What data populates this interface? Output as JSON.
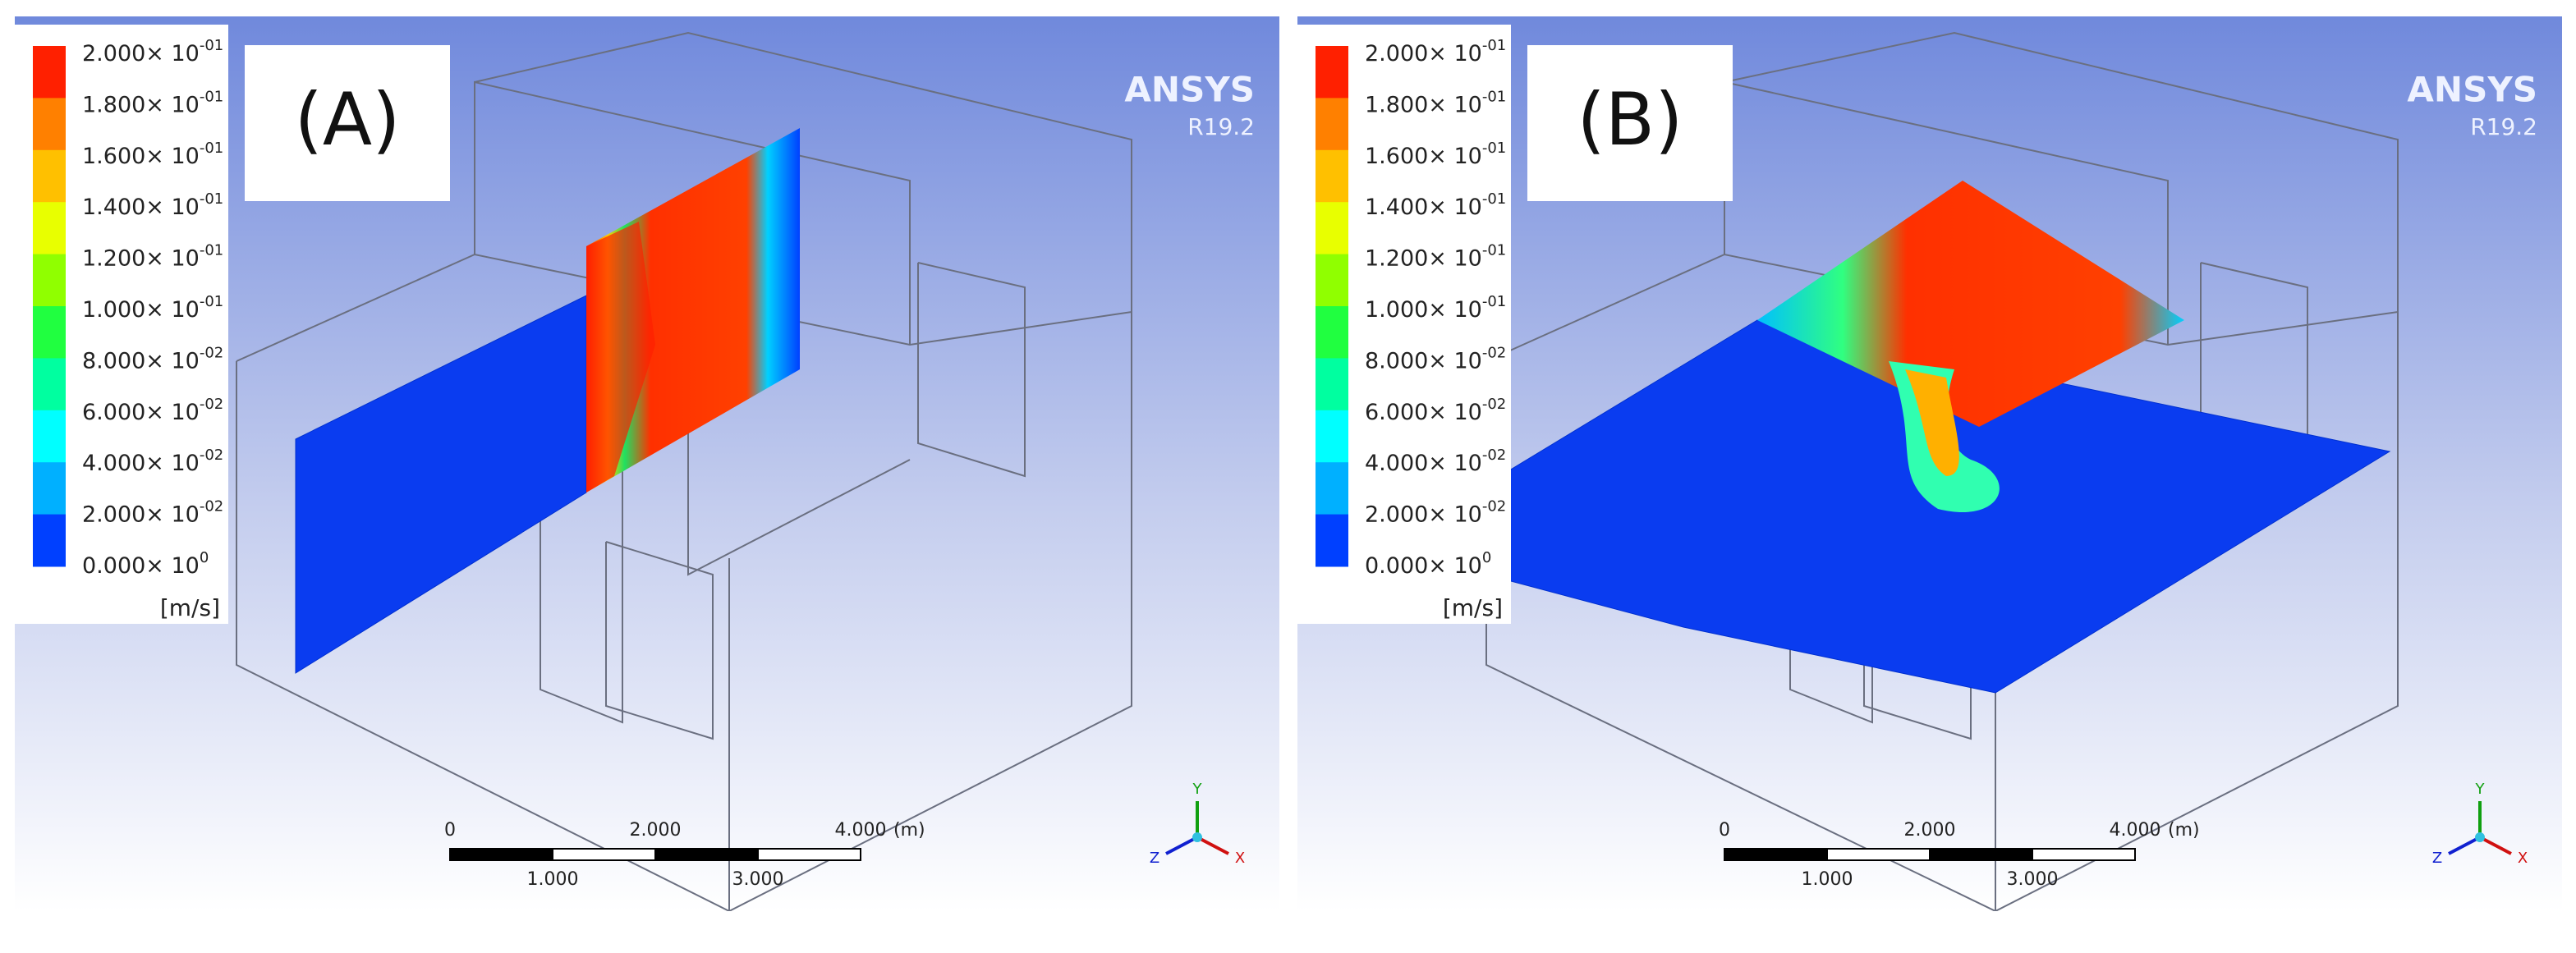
{
  "panels": [
    {
      "label": "(A)",
      "brand": "ANSYS",
      "version": "R19.2",
      "legend": {
        "unit": "[m/s]",
        "ticks": [
          {
            "mantissa": "2.000× 10",
            "exponent": "-01"
          },
          {
            "mantissa": "1.800× 10",
            "exponent": "-01"
          },
          {
            "mantissa": "1.600× 10",
            "exponent": "-01"
          },
          {
            "mantissa": "1.400× 10",
            "exponent": "-01"
          },
          {
            "mantissa": "1.200× 10",
            "exponent": "-01"
          },
          {
            "mantissa": "1.000× 10",
            "exponent": "-01"
          },
          {
            "mantissa": "8.000× 10",
            "exponent": "-02"
          },
          {
            "mantissa": "6.000× 10",
            "exponent": "-02"
          },
          {
            "mantissa": "4.000× 10",
            "exponent": "-02"
          },
          {
            "mantissa": "2.000× 10",
            "exponent": "-02"
          },
          {
            "mantissa": "0.000× 10",
            "exponent": "0"
          }
        ]
      },
      "scale_bar": {
        "top": [
          "0",
          "2.000",
          "4.000",
          "(m)"
        ],
        "bottom": [
          "1.000",
          "3.000"
        ]
      },
      "axes": {
        "x": "X",
        "y": "Y",
        "z": "Z"
      }
    },
    {
      "label": "(B)",
      "brand": "ANSYS",
      "version": "R19.2",
      "legend": {
        "unit": "[m/s]",
        "ticks": [
          {
            "mantissa": "2.000× 10",
            "exponent": "-01"
          },
          {
            "mantissa": "1.800× 10",
            "exponent": "-01"
          },
          {
            "mantissa": "1.600× 10",
            "exponent": "-01"
          },
          {
            "mantissa": "1.400× 10",
            "exponent": "-01"
          },
          {
            "mantissa": "1.200× 10",
            "exponent": "-01"
          },
          {
            "mantissa": "1.000× 10",
            "exponent": "-01"
          },
          {
            "mantissa": "8.000× 10",
            "exponent": "-02"
          },
          {
            "mantissa": "6.000× 10",
            "exponent": "-02"
          },
          {
            "mantissa": "4.000× 10",
            "exponent": "-02"
          },
          {
            "mantissa": "2.000× 10",
            "exponent": "-02"
          },
          {
            "mantissa": "0.000× 10",
            "exponent": "0"
          }
        ]
      },
      "scale_bar": {
        "top": [
          "0",
          "2.000",
          "4.000",
          "(m)"
        ],
        "bottom": [
          "1.000",
          "3.000"
        ]
      },
      "axes": {
        "x": "X",
        "y": "Y",
        "z": "Z"
      }
    }
  ]
}
